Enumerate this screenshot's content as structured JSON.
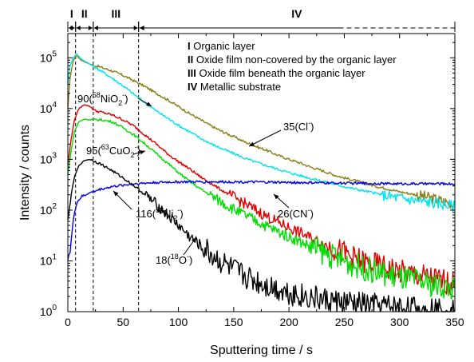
{
  "chart_data": {
    "type": "line",
    "title": "",
    "xlabel": "Sputtering time / s",
    "ylabel": "Intensity / counts",
    "xlim": [
      0,
      350
    ],
    "ylim": [
      1,
      300000
    ],
    "y_scale": "log",
    "x_ticks": [
      "0",
      "50",
      "100",
      "150",
      "200",
      "250",
      "300",
      "350"
    ],
    "y_ticks": [
      {
        "base": "10",
        "exp": "0"
      },
      {
        "base": "10",
        "exp": "1"
      },
      {
        "base": "10",
        "exp": "2"
      },
      {
        "base": "10",
        "exp": "3"
      },
      {
        "base": "10",
        "exp": "4"
      },
      {
        "base": "10",
        "exp": "5"
      }
    ],
    "grid": false,
    "regions": [
      {
        "label": "I",
        "from": 0,
        "to": 7
      },
      {
        "label": "II",
        "from": 7,
        "to": 23
      },
      {
        "label": "III",
        "from": 23,
        "to": 64
      },
      {
        "label": "IV",
        "from": 64,
        "to": 350
      }
    ],
    "region_boundaries": [
      7,
      23,
      64
    ],
    "legend": {
      "placement": "top-right",
      "items": [
        {
          "numeral": "I",
          "text": " Organic layer"
        },
        {
          "numeral": "II",
          "text": " Oxide film non-covered by the organic layer"
        },
        {
          "numeral": "III",
          "text": " Oxide film beneath the organic layer"
        },
        {
          "numeral": "IV",
          "text": " Metallic substrate"
        }
      ]
    },
    "series": [
      {
        "label": "35(Cl⁻)",
        "color": "#8b7d16",
        "points": [
          [
            0,
            10000
          ],
          [
            2,
            40000
          ],
          [
            5,
            90000
          ],
          [
            8,
            110000
          ],
          [
            12,
            90000
          ],
          [
            20,
            75000
          ],
          [
            30,
            65000
          ],
          [
            40,
            55000
          ],
          [
            50,
            45000
          ],
          [
            60,
            35000
          ],
          [
            70,
            27000
          ],
          [
            80,
            20000
          ],
          [
            90,
            15000
          ],
          [
            100,
            11000
          ],
          [
            110,
            8000
          ],
          [
            120,
            6000
          ],
          [
            130,
            4500
          ],
          [
            140,
            3500
          ],
          [
            150,
            2800
          ],
          [
            160,
            2200
          ],
          [
            170,
            1800
          ],
          [
            180,
            1500
          ],
          [
            190,
            1200
          ],
          [
            200,
            1000
          ],
          [
            210,
            850
          ],
          [
            220,
            700
          ],
          [
            230,
            600
          ],
          [
            240,
            500
          ],
          [
            250,
            430
          ],
          [
            260,
            380
          ],
          [
            270,
            330
          ],
          [
            280,
            290
          ],
          [
            290,
            260
          ],
          [
            300,
            230
          ],
          [
            310,
            210
          ],
          [
            320,
            190
          ],
          [
            330,
            170
          ],
          [
            340,
            150
          ],
          [
            350,
            130
          ]
        ]
      },
      {
        "label": "",
        "color": "#00e5ee",
        "points": [
          [
            0,
            30000
          ],
          [
            2,
            70000
          ],
          [
            5,
            100000
          ],
          [
            8,
            120000
          ],
          [
            12,
            95000
          ],
          [
            20,
            75000
          ],
          [
            30,
            55000
          ],
          [
            40,
            40000
          ],
          [
            50,
            28000
          ],
          [
            60,
            19000
          ],
          [
            70,
            13000
          ],
          [
            80,
            9000
          ],
          [
            90,
            6500
          ],
          [
            100,
            4700
          ],
          [
            110,
            3500
          ],
          [
            120,
            2600
          ],
          [
            130,
            2000
          ],
          [
            140,
            1600
          ],
          [
            150,
            1300
          ],
          [
            160,
            1050
          ],
          [
            170,
            880
          ],
          [
            180,
            750
          ],
          [
            190,
            640
          ],
          [
            200,
            550
          ],
          [
            210,
            480
          ],
          [
            220,
            420
          ],
          [
            230,
            370
          ],
          [
            240,
            330
          ],
          [
            250,
            290
          ],
          [
            260,
            260
          ],
          [
            270,
            235
          ],
          [
            280,
            210
          ],
          [
            290,
            190
          ],
          [
            300,
            175
          ],
          [
            310,
            160
          ],
          [
            320,
            150
          ],
          [
            330,
            140
          ],
          [
            340,
            130
          ],
          [
            350,
            120
          ]
        ]
      },
      {
        "label": "90(⁵⁸NiO₂⁻)",
        "color": "#e00000",
        "points": [
          [
            0,
            800
          ],
          [
            3,
            2500
          ],
          [
            6,
            6000
          ],
          [
            10,
            10000
          ],
          [
            15,
            12000
          ],
          [
            20,
            11000
          ],
          [
            25,
            9000
          ],
          [
            30,
            8500
          ],
          [
            40,
            7500
          ],
          [
            50,
            6000
          ],
          [
            60,
            4500
          ],
          [
            70,
            3000
          ],
          [
            80,
            2000
          ],
          [
            90,
            1300
          ],
          [
            100,
            900
          ],
          [
            110,
            650
          ],
          [
            120,
            450
          ],
          [
            130,
            330
          ],
          [
            140,
            240
          ],
          [
            150,
            180
          ],
          [
            160,
            135
          ],
          [
            170,
            100
          ],
          [
            180,
            75
          ],
          [
            190,
            58
          ],
          [
            200,
            45
          ],
          [
            210,
            36
          ],
          [
            220,
            28
          ],
          [
            230,
            22
          ],
          [
            240,
            18
          ],
          [
            250,
            14
          ],
          [
            260,
            11
          ],
          [
            270,
            9
          ],
          [
            280,
            8
          ],
          [
            290,
            7
          ],
          [
            300,
            6
          ],
          [
            310,
            5.5
          ],
          [
            320,
            5
          ],
          [
            330,
            4.5
          ],
          [
            340,
            4
          ],
          [
            350,
            3.5
          ]
        ]
      },
      {
        "label": "95(⁶³CuO₂⁻)",
        "color": "#00dd00",
        "points": [
          [
            0,
            500
          ],
          [
            3,
            1500
          ],
          [
            6,
            3500
          ],
          [
            10,
            5500
          ],
          [
            15,
            6200
          ],
          [
            20,
            6000
          ],
          [
            30,
            6000
          ],
          [
            40,
            5500
          ],
          [
            50,
            4200
          ],
          [
            60,
            3000
          ],
          [
            70,
            2000
          ],
          [
            80,
            1300
          ],
          [
            90,
            850
          ],
          [
            100,
            550
          ],
          [
            110,
            370
          ],
          [
            120,
            260
          ],
          [
            130,
            190
          ],
          [
            140,
            140
          ],
          [
            150,
            105
          ],
          [
            160,
            80
          ],
          [
            170,
            62
          ],
          [
            180,
            48
          ],
          [
            190,
            38
          ],
          [
            200,
            30
          ],
          [
            210,
            24
          ],
          [
            220,
            19
          ],
          [
            230,
            15
          ],
          [
            240,
            12
          ],
          [
            250,
            10
          ],
          [
            260,
            8
          ],
          [
            270,
            7
          ],
          [
            280,
            6
          ],
          [
            290,
            5.2
          ],
          [
            300,
            4.6
          ],
          [
            310,
            4.2
          ],
          [
            320,
            3.8
          ],
          [
            330,
            3.4
          ],
          [
            340,
            3.1
          ],
          [
            350,
            2.8
          ]
        ]
      },
      {
        "label": "18(¹⁸O⁻)",
        "color": "#000000",
        "points": [
          [
            0,
            60
          ],
          [
            3,
            200
          ],
          [
            6,
            450
          ],
          [
            10,
            750
          ],
          [
            15,
            950
          ],
          [
            20,
            1000
          ],
          [
            25,
            900
          ],
          [
            30,
            800
          ],
          [
            40,
            600
          ],
          [
            50,
            430
          ],
          [
            60,
            300
          ],
          [
            70,
            200
          ],
          [
            80,
            130
          ],
          [
            90,
            80
          ],
          [
            100,
            50
          ],
          [
            110,
            30
          ],
          [
            120,
            20
          ],
          [
            130,
            13
          ],
          [
            140,
            9
          ],
          [
            150,
            6.5
          ],
          [
            160,
            5
          ],
          [
            170,
            4
          ],
          [
            180,
            3.3
          ],
          [
            190,
            2.8
          ],
          [
            200,
            2.4
          ],
          [
            210,
            2.1
          ],
          [
            220,
            1.9
          ],
          [
            230,
            1.7
          ],
          [
            240,
            1.6
          ],
          [
            250,
            1.5
          ],
          [
            260,
            1.4
          ],
          [
            270,
            1.35
          ],
          [
            280,
            1.3
          ],
          [
            290,
            1.25
          ],
          [
            300,
            1.2
          ],
          [
            310,
            1.15
          ],
          [
            320,
            1.1
          ],
          [
            330,
            1.1
          ],
          [
            340,
            1.05
          ],
          [
            350,
            1.05
          ]
        ]
      },
      {
        "label": "116(⁵⁸Ni₂⁻)",
        "color": "#0000ee",
        "points": [
          [
            0,
            12
          ],
          [
            2,
            15
          ],
          [
            4,
            40
          ],
          [
            6,
            90
          ],
          [
            8,
            140
          ],
          [
            12,
            180
          ],
          [
            20,
            220
          ],
          [
            30,
            260
          ],
          [
            40,
            290
          ],
          [
            50,
            310
          ],
          [
            60,
            330
          ],
          [
            70,
            340
          ],
          [
            80,
            350
          ],
          [
            100,
            360
          ],
          [
            120,
            360
          ],
          [
            150,
            360
          ],
          [
            200,
            350
          ],
          [
            250,
            340
          ],
          [
            300,
            330
          ],
          [
            350,
            330
          ]
        ]
      }
    ],
    "annotations": [
      {
        "prefix": "90(",
        "sup": "58",
        "mid": "NiO",
        "sub": "2",
        "sup2": "-",
        "end": ")"
      },
      {
        "prefix": "95(",
        "sup": "63",
        "mid": "CuO",
        "sub": "2",
        "sup2": "-",
        "end": ")"
      },
      {
        "prefix": "116(",
        "sup": "58",
        "mid": "Ni",
        "sub": "2",
        "sup2": "-",
        "end": ")"
      },
      {
        "prefix": "18(",
        "sup": "18",
        "mid": "O",
        "sub": "",
        "sup2": "-",
        "end": ")"
      },
      {
        "prefix": "35(Cl",
        "sup": "",
        "mid": "",
        "sub": "",
        "sup2": "-",
        "end": ")"
      },
      {
        "prefix": "26(CN",
        "sup": "",
        "mid": "",
        "sub": "",
        "sup2": "-",
        "end": ")"
      }
    ]
  }
}
